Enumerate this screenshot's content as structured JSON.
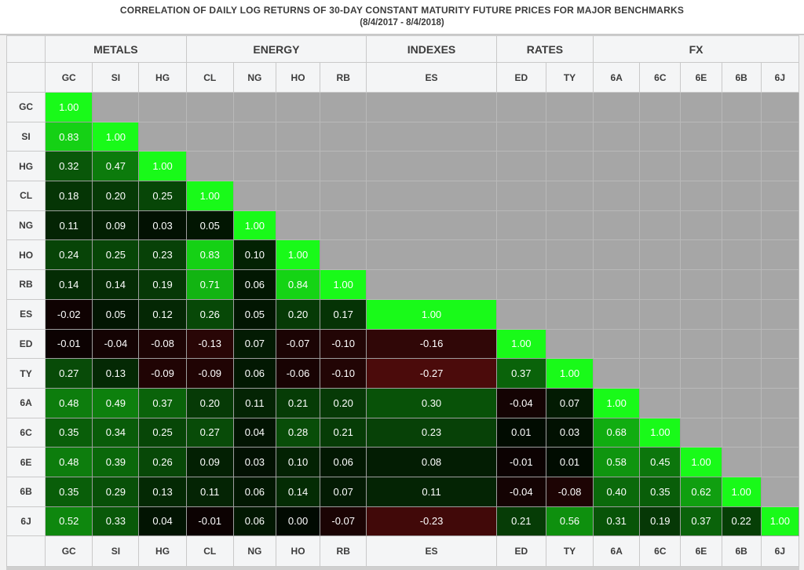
{
  "title": {
    "line1": "CORRELATION OF DAILY LOG RETURNS OF 30-DAY CONSTANT MATURITY FUTURE PRICES FOR MAJOR BENCHMARKS",
    "line2": "(8/4/2017 - 8/4/2018)"
  },
  "colors": {
    "positive_max_green": "#19FA19",
    "negative_dark_red": "#4B0B0B",
    "neutral_black": "#000000",
    "gray_upper_cell": "#A6A6A6",
    "header_bg": "#F4F5F6",
    "header_text": "#3C3C3C",
    "title_text": "#3B3B3B",
    "cell_text": "#FFFFFF"
  },
  "chart_data": {
    "type": "heatmap",
    "title": "CORRELATION OF DAILY LOG RETURNS OF 30-DAY CONSTANT MATURITY FUTURE PRICES FOR MAJOR BENCHMARKS",
    "subtitle": "(8/4/2017 - 8/4/2018)",
    "groups": [
      {
        "label": "METALS",
        "columns": [
          "GC",
          "SI",
          "HG"
        ]
      },
      {
        "label": "ENERGY",
        "columns": [
          "CL",
          "NG",
          "HO",
          "RB"
        ]
      },
      {
        "label": "INDEXES",
        "columns": [
          "ES"
        ]
      },
      {
        "label": "RATES",
        "columns": [
          "ED",
          "TY"
        ]
      },
      {
        "label": "FX",
        "columns": [
          "6A",
          "6C",
          "6E",
          "6B",
          "6J"
        ]
      }
    ],
    "columns": [
      "GC",
      "SI",
      "HG",
      "CL",
      "NG",
      "HO",
      "RB",
      "ES",
      "ED",
      "TY",
      "6A",
      "6C",
      "6E",
      "6B",
      "6J"
    ],
    "rows": [
      "GC",
      "SI",
      "HG",
      "CL",
      "NG",
      "HO",
      "RB",
      "ES",
      "ED",
      "TY",
      "6A",
      "6C",
      "6E",
      "6B",
      "6J"
    ],
    "matrix_lower_triangle": [
      [
        1.0
      ],
      [
        0.83,
        1.0
      ],
      [
        0.32,
        0.47,
        1.0
      ],
      [
        0.18,
        0.2,
        0.25,
        1.0
      ],
      [
        0.11,
        0.09,
        0.03,
        0.05,
        1.0
      ],
      [
        0.24,
        0.25,
        0.23,
        0.83,
        0.1,
        1.0
      ],
      [
        0.14,
        0.14,
        0.19,
        0.71,
        0.06,
        0.84,
        1.0
      ],
      [
        -0.02,
        0.05,
        0.12,
        0.26,
        0.05,
        0.2,
        0.17,
        1.0
      ],
      [
        -0.01,
        -0.04,
        -0.08,
        -0.13,
        0.07,
        -0.07,
        -0.1,
        -0.16,
        1.0
      ],
      [
        0.27,
        0.13,
        -0.09,
        -0.09,
        0.06,
        -0.06,
        -0.1,
        -0.27,
        0.37,
        1.0
      ],
      [
        0.48,
        0.49,
        0.37,
        0.2,
        0.11,
        0.21,
        0.2,
        0.3,
        -0.04,
        0.07,
        1.0
      ],
      [
        0.35,
        0.34,
        0.25,
        0.27,
        0.04,
        0.28,
        0.21,
        0.23,
        0.01,
        0.03,
        0.68,
        1.0
      ],
      [
        0.48,
        0.39,
        0.26,
        0.09,
        0.03,
        0.1,
        0.06,
        0.08,
        -0.01,
        0.01,
        0.58,
        0.45,
        1.0
      ],
      [
        0.35,
        0.29,
        0.13,
        0.11,
        0.06,
        0.14,
        0.07,
        0.11,
        -0.04,
        -0.08,
        0.4,
        0.35,
        0.62,
        1.0
      ],
      [
        0.52,
        0.33,
        0.04,
        -0.01,
        0.06,
        0.0,
        -0.07,
        -0.23,
        0.21,
        0.56,
        0.31,
        0.19,
        0.37,
        0.22,
        1.0
      ]
    ],
    "color_scale": {
      "positive": "black (0.00) to bright green (1.00)",
      "negative": "black (0.00) to dark red (-1.00)",
      "upper_triangle": "#A6A6A6 gray (no value shown)"
    },
    "legend_position": "none",
    "grid": true,
    "footer_columns_repeated": true
  }
}
